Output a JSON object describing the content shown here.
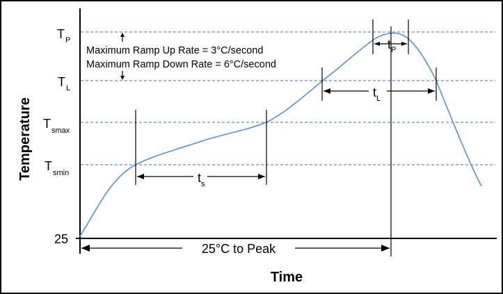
{
  "diagram": {
    "y_axis_title": "Temperature",
    "x_axis_title": "Time",
    "levels": {
      "tp": {
        "main": "T",
        "sub": "P"
      },
      "tl": {
        "main": "T",
        "sub": "L"
      },
      "tsmax": {
        "main": "T",
        "sub": "smax"
      },
      "tsmin": {
        "main": "T",
        "sub": "smin"
      },
      "base": "25"
    },
    "notes": {
      "ramp_up": "Maximum Ramp Up Rate = 3°C/second",
      "ramp_down": "Maximum Ramp Down Rate = 6°C/second"
    },
    "intervals": {
      "ts": {
        "main": "t",
        "sub": "s"
      },
      "tl": {
        "main": "t",
        "sub": "L"
      },
      "tp": {
        "main": "t",
        "sub": "P"
      },
      "peak": "25°C to Peak"
    },
    "colors": {
      "curve": "#5b8dd0",
      "guides": "#3f6fb5",
      "frame": "#000000"
    }
  }
}
